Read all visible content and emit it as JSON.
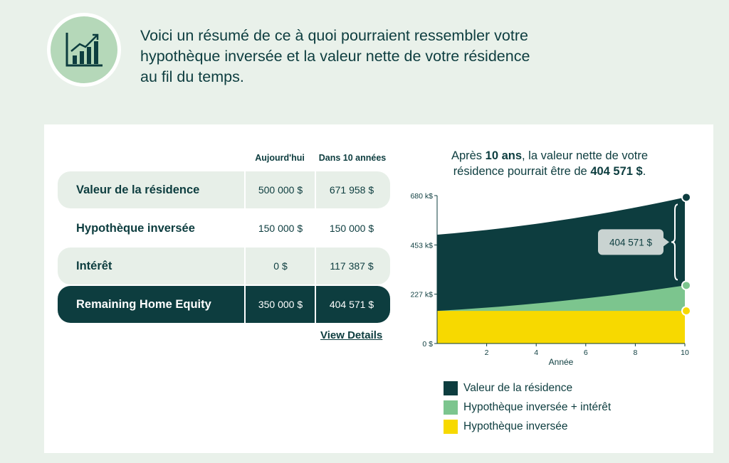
{
  "intro": {
    "line1": "Voici un résumé de ce à quoi pourraient ressembler votre",
    "line2": "hypothèque inversée et la valeur nette de votre résidence",
    "line3": "au fil du temps.",
    "icon": "growth-chart-icon"
  },
  "table": {
    "headers": [
      "Aujourd'hui",
      "Dans 10 années"
    ],
    "rows": [
      {
        "label": "Valeur de la résidence",
        "today": "500 000 $",
        "in10": "671 958 $"
      },
      {
        "label": "Hypothèque inversée",
        "today": "150 000 $",
        "in10": "150 000 $"
      },
      {
        "label": "Intérêt",
        "today": "0 $",
        "in10": "117 387 $"
      },
      {
        "label": "Remaining Home Equity",
        "today": "350 000 $",
        "in10": "404 571 $"
      }
    ],
    "view_details": "View Details"
  },
  "chart_heading": {
    "pre": "Après ",
    "years": "10 ans",
    "mid": ", la valeur nette de votre",
    "line2_pre": "résidence pourrait être de ",
    "amount": "404 571 $",
    "end": "."
  },
  "chart_data": {
    "type": "area",
    "x": [
      0,
      10
    ],
    "xticks": [
      2,
      4,
      6,
      8,
      10
    ],
    "xlabel": "Année",
    "yticks": [
      0,
      227,
      453,
      680
    ],
    "ytick_labels": [
      "0 $",
      "227 k$",
      "453 k$",
      "680 k$"
    ],
    "ylim": [
      0,
      680
    ],
    "series": [
      {
        "name": "Valeur de la résidence",
        "color": "#0d3d3f",
        "start": 500,
        "end": 672
      },
      {
        "name": "Hypothèque inversée + intérêt",
        "color": "#7cc58e",
        "start": 150,
        "end": 267
      },
      {
        "name": "Hypothèque inversée",
        "color": "#f7d900",
        "start": 150,
        "end": 150
      }
    ],
    "callout": "404 571 $",
    "legend_position": "bottom"
  }
}
